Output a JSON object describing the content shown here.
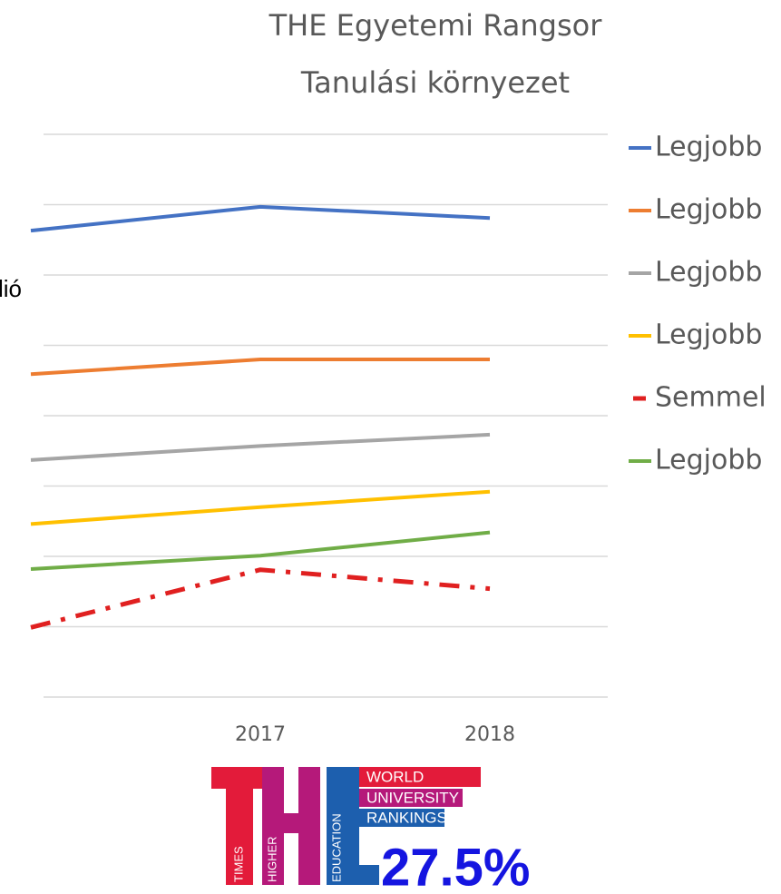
{
  "chart_data": {
    "type": "line",
    "title": "THE Egyetemi Rangsor",
    "subtitle": "Tanulási környezet",
    "side_text": "lió",
    "categories": [
      null,
      "2017",
      "2018"
    ],
    "series": [
      {
        "name": "Legjobb",
        "color": "#4472c4",
        "values": [
          66.3,
          69.7,
          68.1
        ]
      },
      {
        "name": "Legjobb",
        "color": "#ed7d31",
        "values": [
          45.9,
          48.0,
          48.0
        ]
      },
      {
        "name": "Legjobb",
        "color": "#a5a5a5",
        "values": [
          33.7,
          35.7,
          37.3
        ]
      },
      {
        "name": "Legjobb",
        "color": "#ffc000",
        "values": [
          24.6,
          27.0,
          29.2
        ]
      },
      {
        "name": "Semmel",
        "color": "#e02020",
        "dash": "dashdot",
        "values": [
          9.9,
          18.1,
          15.4
        ]
      },
      {
        "name": "Legjobb",
        "color": "#70ad47",
        "values": [
          18.2,
          20.1,
          23.4
        ]
      }
    ],
    "ylim": [
      0,
      80
    ],
    "yticks": [
      0,
      10,
      20,
      30,
      40,
      50,
      60,
      70,
      80
    ],
    "grid": true,
    "legend": "right",
    "logo": {
      "world": "WORLD",
      "university": "UNIVERSITY",
      "rankings": "RANKINGS",
      "times": "TIMES",
      "higher": "HIGHER",
      "education": "EDUCATION"
    },
    "annotation": "27.5%"
  }
}
